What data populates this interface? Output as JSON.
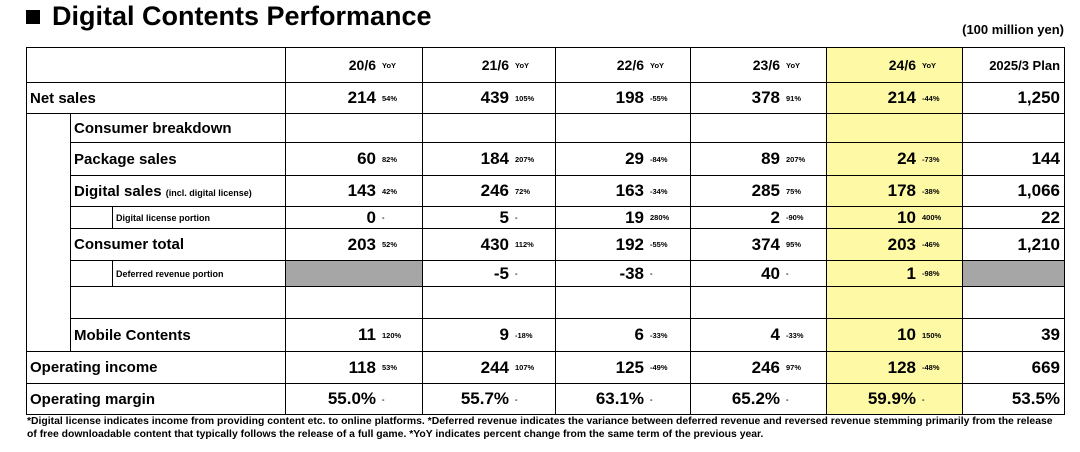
{
  "title": "Digital Contents Performance",
  "unit": "(100 million yen)",
  "header": {
    "periods": [
      {
        "label": "20/6",
        "yoy": "YoY"
      },
      {
        "label": "21/6",
        "yoy": "YoY"
      },
      {
        "label": "22/6",
        "yoy": "YoY"
      },
      {
        "label": "23/6",
        "yoy": "YoY"
      },
      {
        "label": "24/6",
        "yoy": "YoY"
      }
    ],
    "plan": "2025/3 Plan"
  },
  "rows": [
    {
      "label": "Net sales",
      "cells": [
        {
          "value": "214",
          "yoy": "54%"
        },
        {
          "value": "439",
          "yoy": "105%"
        },
        {
          "value": "198",
          "yoy": "-55%"
        },
        {
          "value": "378",
          "yoy": "91%"
        },
        {
          "value": "214",
          "yoy": "-44%"
        }
      ],
      "plan": "1,250"
    },
    {
      "label": "Consumer breakdown"
    },
    {
      "label": "Package sales",
      "cells": [
        {
          "value": "60",
          "yoy": "82%"
        },
        {
          "value": "184",
          "yoy": "207%"
        },
        {
          "value": "29",
          "yoy": "-84%"
        },
        {
          "value": "89",
          "yoy": "207%"
        },
        {
          "value": "24",
          "yoy": "-73%"
        }
      ],
      "plan": "144"
    },
    {
      "label": "Digital sales",
      "label_note": "(incl. digital license)",
      "cells": [
        {
          "value": "143",
          "yoy": "42%"
        },
        {
          "value": "246",
          "yoy": "72%"
        },
        {
          "value": "163",
          "yoy": "-34%"
        },
        {
          "value": "285",
          "yoy": "75%"
        },
        {
          "value": "178",
          "yoy": "-38%"
        }
      ],
      "plan": "1,066"
    },
    {
      "label": "Digital license portion",
      "cells": [
        {
          "value": "0",
          "yoy": "-"
        },
        {
          "value": "5",
          "yoy": "-"
        },
        {
          "value": "19",
          "yoy": "280%"
        },
        {
          "value": "2",
          "yoy": "-90%"
        },
        {
          "value": "10",
          "yoy": "400%"
        }
      ],
      "plan": "22"
    },
    {
      "label": "Consumer total",
      "cells": [
        {
          "value": "203",
          "yoy": "52%"
        },
        {
          "value": "430",
          "yoy": "112%"
        },
        {
          "value": "192",
          "yoy": "-55%"
        },
        {
          "value": "374",
          "yoy": "95%"
        },
        {
          "value": "203",
          "yoy": "-46%"
        }
      ],
      "plan": "1,210"
    },
    {
      "label": "Deferred revenue portion",
      "cells": [
        null,
        {
          "value": "-5",
          "yoy": "-"
        },
        {
          "value": "-38",
          "yoy": "-"
        },
        {
          "value": "40",
          "yoy": "-"
        },
        {
          "value": "1",
          "yoy": "-98%"
        }
      ],
      "plan": null
    },
    {
      "label": "Mobile Contents",
      "cells": [
        {
          "value": "11",
          "yoy": "120%"
        },
        {
          "value": "9",
          "yoy": "-18%"
        },
        {
          "value": "6",
          "yoy": "-33%"
        },
        {
          "value": "4",
          "yoy": "-33%"
        },
        {
          "value": "10",
          "yoy": "150%"
        }
      ],
      "plan": "39"
    },
    {
      "label": "Operating income",
      "cells": [
        {
          "value": "118",
          "yoy": "53%"
        },
        {
          "value": "244",
          "yoy": "107%"
        },
        {
          "value": "125",
          "yoy": "-49%"
        },
        {
          "value": "246",
          "yoy": "97%"
        },
        {
          "value": "128",
          "yoy": "-48%"
        }
      ],
      "plan": "669"
    },
    {
      "label": "Operating margin",
      "cells": [
        {
          "value": "55.0%",
          "yoy": "-"
        },
        {
          "value": "55.7%",
          "yoy": "-"
        },
        {
          "value": "63.1%",
          "yoy": "-"
        },
        {
          "value": "65.2%",
          "yoy": "-"
        },
        {
          "value": "59.9%",
          "yoy": "-"
        }
      ],
      "plan": "53.5%"
    }
  ],
  "footnote": "*Digital license indicates income from providing content etc. to online platforms. *Deferred revenue indicates the variance between deferred revenue and reversed revenue stemming primarily from the release of free downloadable content that typically follows the release of a full game. *YoY indicates percent change from the same term of the previous year."
}
